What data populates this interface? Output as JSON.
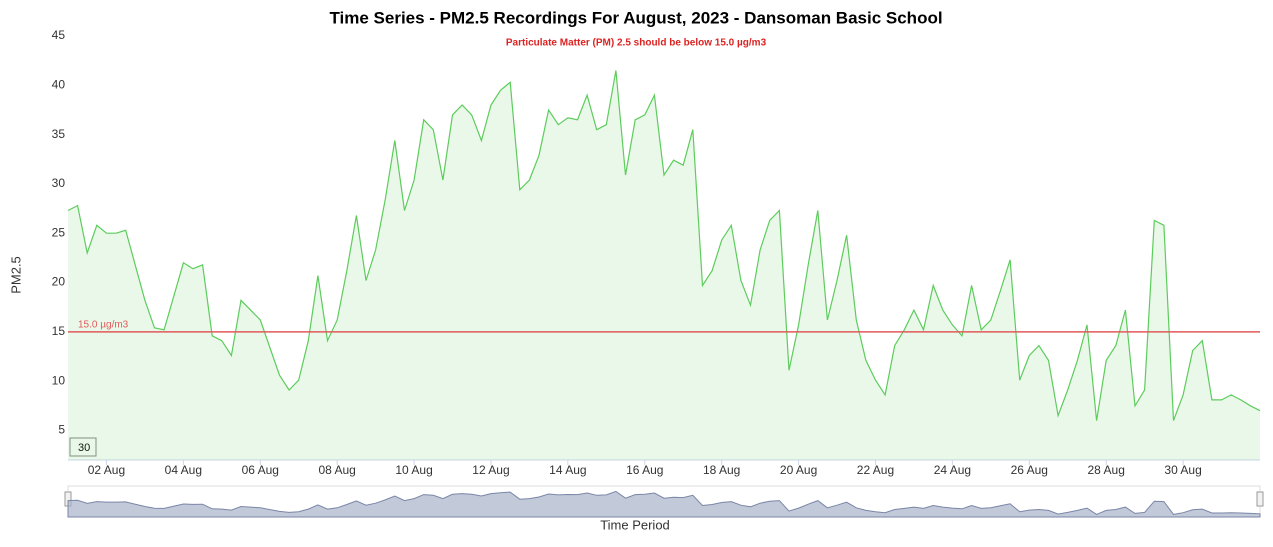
{
  "chart_data": {
    "type": "area",
    "title": "Time Series - PM2.5 Recordings For August, 2023 - Dansoman Basic School",
    "subtitle": "Particulate Matter (PM) 2.5 should be below 15.0 µg/m3",
    "y_label": "PM2.5",
    "x_label": "Time Period",
    "badge": "30",
    "threshold": {
      "value": 15,
      "label": "15.0 µg/m3",
      "color": "#e05a5a"
    },
    "color": "#5ccc5c",
    "grid": false,
    "xlim": [
      1,
      32
    ],
    "xticks": [
      {
        "value": 2,
        "label": "02 Aug"
      },
      {
        "value": 4,
        "label": "04 Aug"
      },
      {
        "value": 6,
        "label": "06 Aug"
      },
      {
        "value": 8,
        "label": "08 Aug"
      },
      {
        "value": 10,
        "label": "10 Aug"
      },
      {
        "value": 12,
        "label": "12 Aug"
      },
      {
        "value": 14,
        "label": "14 Aug"
      },
      {
        "value": 16,
        "label": "16 Aug"
      },
      {
        "value": 18,
        "label": "18 Aug"
      },
      {
        "value": 20,
        "label": "20 Aug"
      },
      {
        "value": 22,
        "label": "22 Aug"
      },
      {
        "value": 24,
        "label": "24 Aug"
      },
      {
        "value": 26,
        "label": "26 Aug"
      },
      {
        "value": 28,
        "label": "28 Aug"
      },
      {
        "value": 30,
        "label": "30 Aug"
      }
    ],
    "ylim": [
      2,
      45
    ],
    "yticks": [
      5,
      10,
      15,
      20,
      25,
      30,
      35,
      40,
      45
    ],
    "x": [
      1,
      1.25,
      1.5,
      1.75,
      2,
      2.25,
      2.5,
      3,
      3.25,
      3.5,
      4,
      4.25,
      4.5,
      4.75,
      5,
      5.25,
      5.5,
      5.75,
      6,
      6.5,
      6.75,
      7,
      7.25,
      7.5,
      7.75,
      8,
      8.25,
      8.5,
      8.75,
      9,
      9.25,
      9.5,
      9.75,
      10,
      10.25,
      10.5,
      10.75,
      11,
      11.25,
      11.5,
      11.75,
      12,
      12.25,
      12.5,
      12.75,
      13,
      13.25,
      13.5,
      13.75,
      14,
      14.25,
      14.5,
      14.75,
      15,
      15.25,
      15.5,
      15.75,
      16,
      16.25,
      16.5,
      16.75,
      17,
      17.25,
      17.5,
      17.75,
      18,
      18.25,
      18.5,
      18.75,
      19,
      19.25,
      19.5,
      19.75,
      20,
      20.25,
      20.5,
      20.75,
      21,
      21.25,
      21.5,
      21.75,
      22,
      22.25,
      22.5,
      22.75,
      23,
      23.25,
      23.5,
      23.75,
      24,
      24.25,
      24.5,
      24.75,
      25,
      25.25,
      25.5,
      25.75,
      26,
      26.25,
      26.5,
      26.75,
      27,
      27.25,
      27.5,
      27.75,
      28,
      28.25,
      28.5,
      28.75,
      29,
      29.25,
      29.5,
      29.75,
      30,
      30.25,
      30.5,
      30.75,
      31,
      31.25,
      31.5,
      31.75,
      32
    ],
    "values": [
      27.3,
      27.8,
      23,
      25.8,
      25,
      25,
      25.3,
      18.2,
      15.4,
      15.2,
      22,
      21.4,
      21.8,
      14.6,
      14.1,
      12.6,
      18.2,
      17.2,
      16.2,
      10.6,
      9.1,
      10.1,
      14.1,
      20.7,
      14.1,
      16.2,
      21.2,
      26.8,
      20.2,
      23.3,
      28.4,
      34.4,
      27.3,
      30.4,
      36.5,
      35.5,
      30.4,
      37,
      38,
      37,
      34.4,
      38,
      39.5,
      40.3,
      29.4,
      30.4,
      32.9,
      37.5,
      36,
      36.7,
      36.5,
      39,
      35.5,
      36,
      41.5,
      30.9,
      36.5,
      37,
      39,
      30.9,
      32.4,
      31.9,
      35.5,
      19.7,
      21.2,
      24.3,
      25.8,
      20.2,
      17.7,
      23.3,
      26.3,
      27.3,
      11.1,
      15.7,
      21.8,
      27.3,
      16.2,
      20.2,
      24.8,
      16.2,
      12.1,
      10.1,
      8.6,
      13.6,
      15.2,
      17.2,
      15.2,
      19.7,
      17.2,
      15.7,
      14.6,
      19.7,
      15.2,
      16.2,
      19.2,
      22.3,
      10.1,
      12.6,
      13.6,
      12.1,
      6.5,
      9.1,
      12.1,
      15.7,
      6,
      12.1,
      13.6,
      17.2,
      7.5,
      9.1,
      26.3,
      25.8,
      6,
      8.6,
      13.1,
      14.1,
      8.1,
      8.1,
      8.6,
      8.1,
      7.5,
      7
    ]
  }
}
